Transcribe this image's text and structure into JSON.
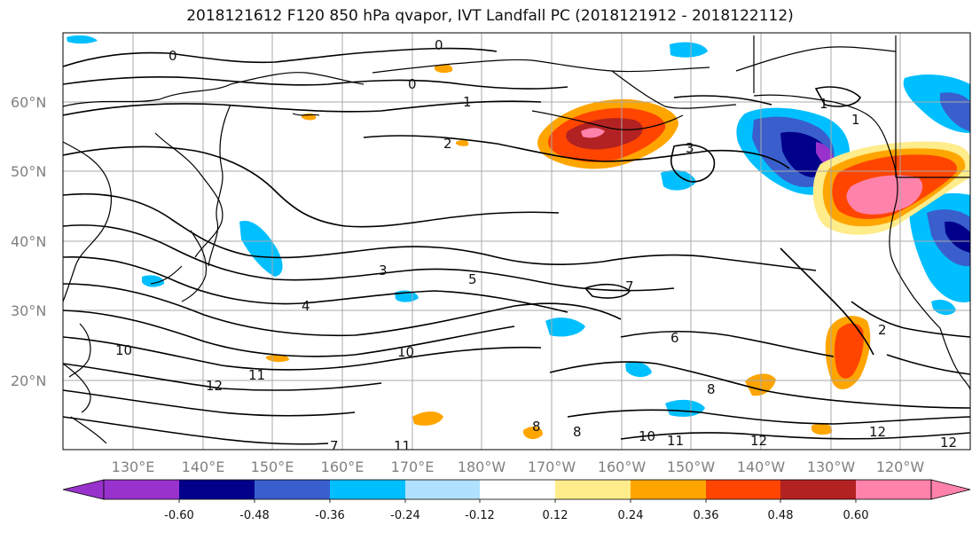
{
  "title": "2018121612 F120 850 hPa qvapor, IVT Landfall PC (2018121912 - 2018122112)",
  "lat_labels": [
    "60°N",
    "50°N",
    "40°N",
    "30°N",
    "20°N"
  ],
  "lon_labels": [
    "130°E",
    "140°E",
    "150°E",
    "160°E",
    "170°E",
    "180°W",
    "170°W",
    "160°W",
    "150°W",
    "140°W",
    "130°W",
    "120°W"
  ],
  "colorbar": {
    "colors": [
      "#9932cc",
      "#00008b",
      "#3a5fcd",
      "#00bfff",
      "#b0e2ff",
      "#ffffff",
      "#ffec8b",
      "#ffa500",
      "#ff4500",
      "#b22222",
      "#ff82ab"
    ],
    "tick_labels": [
      "-0.60",
      "-0.48",
      "-0.36",
      "-0.24",
      "-0.12",
      "0.12",
      "0.24",
      "0.36",
      "0.48",
      "0.60"
    ]
  },
  "contour_labels": [
    "0",
    "0",
    "0",
    "1",
    "1",
    "1",
    "2",
    "2",
    "3",
    "3",
    "4",
    "5",
    "6",
    "7",
    "8",
    "8",
    "8",
    "10",
    "10",
    "10",
    "11",
    "11",
    "11",
    "12",
    "12",
    "12",
    "12",
    "7"
  ]
}
